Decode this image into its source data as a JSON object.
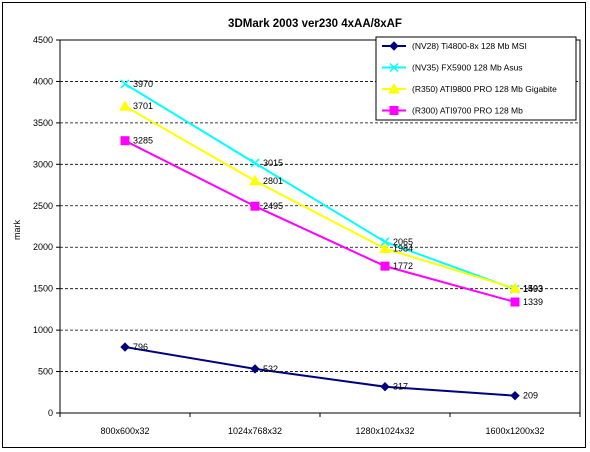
{
  "chart_data": {
    "type": "line",
    "title": "3DMark 2003 ver230 4xAA/8xAF",
    "xlabel": "",
    "ylabel": "mark",
    "categories": [
      "800x600x32",
      "1024x768x32",
      "1280x1024x32",
      "1600x1200x32"
    ],
    "ylim": [
      0,
      4500
    ],
    "yticks": [
      0,
      500,
      1000,
      1500,
      2000,
      2500,
      3000,
      3500,
      4000,
      4500
    ],
    "grid": "horizontal dashed",
    "legend_position": "top-right",
    "series": [
      {
        "name": "(NV28) Ti4800-8x 128 Mb MSI",
        "color": "#000080",
        "marker": "diamond",
        "values": [
          796,
          532,
          317,
          209
        ],
        "labels": [
          "796",
          "532",
          "317",
          "209"
        ]
      },
      {
        "name": "(NV35) FX5900 128 Mb Asus",
        "color": "#00ffff",
        "marker": "x",
        "values": [
          3970,
          3015,
          2065,
          1493
        ],
        "labels": [
          "3970",
          "3015",
          "2065",
          "1493"
        ]
      },
      {
        "name": "(R350) ATI9800 PRO 128 Mb Gigabite",
        "color": "#ffff00",
        "marker": "triangle",
        "values": [
          3701,
          2801,
          1984,
          1503
        ],
        "labels": [
          "3701",
          "2801",
          "1984",
          "1503"
        ]
      },
      {
        "name": "(R300) ATI9700 PRO 128 Mb",
        "color": "#ff00ff",
        "marker": "square",
        "values": [
          3285,
          2495,
          1772,
          1339
        ],
        "labels": [
          "3285",
          "2495",
          "1772",
          "1339"
        ]
      }
    ]
  }
}
